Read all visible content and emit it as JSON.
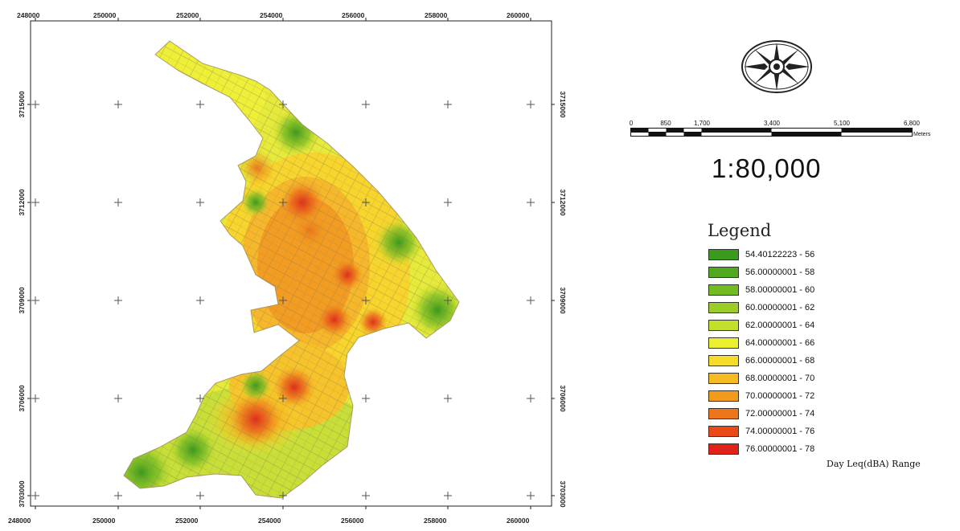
{
  "map": {
    "x_ticks_top": [
      "248000",
      "250000",
      "252000",
      "254000",
      "256000",
      "258000",
      "260000"
    ],
    "x_ticks_bottom": [
      "248000",
      "250000",
      "252000",
      "254000",
      "256000",
      "258000",
      "260000"
    ],
    "y_ticks_left": [
      "3715000",
      "3712000",
      "3709000",
      "3706000",
      "3703000"
    ],
    "y_ticks_right": [
      "3715000",
      "3712000",
      "3709000",
      "3706000",
      "3703000"
    ]
  },
  "north_arrow": {
    "icon": "compass-rose-icon"
  },
  "scale_bar": {
    "ticks": [
      "0",
      "850",
      "1,700",
      "3,400",
      "5,100",
      "6,800"
    ],
    "unit": "Meters",
    "ratio": "1:80,000"
  },
  "legend": {
    "title": "Legend",
    "items": [
      {
        "label": "54.40122223 - 56",
        "color": "#3a9a1c"
      },
      {
        "label": "56.00000001 - 58",
        "color": "#52a81e"
      },
      {
        "label": "58.00000001 - 60",
        "color": "#72bb22"
      },
      {
        "label": "60.00000001 - 62",
        "color": "#9acd28"
      },
      {
        "label": "62.00000001 - 64",
        "color": "#c4de2c"
      },
      {
        "label": "64.00000001 - 66",
        "color": "#ecf02e"
      },
      {
        "label": "66.00000001 - 68",
        "color": "#f7dc2c"
      },
      {
        "label": "68.00000001 - 70",
        "color": "#f6bb22"
      },
      {
        "label": "70.00000001 - 72",
        "color": "#f19a1c"
      },
      {
        "label": "72.00000001 - 74",
        "color": "#ee761a"
      },
      {
        "label": "74.00000001 - 76",
        "color": "#ea4a16"
      },
      {
        "label": "76.00000001 - 78",
        "color": "#e2221a"
      }
    ],
    "caption": "Day Leq(dBA) Range"
  }
}
